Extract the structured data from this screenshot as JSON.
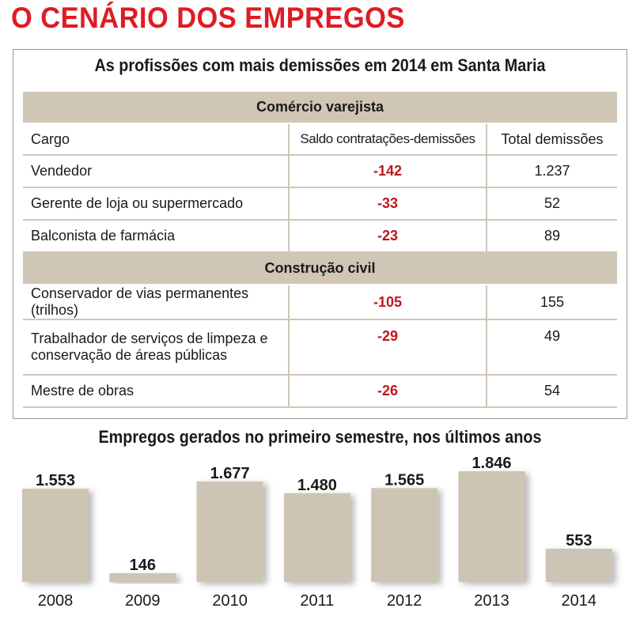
{
  "header": {
    "title": "O CENÁRIO DOS EMPREGOS",
    "subtitle": "As profissões com mais demissões em 2014 em Santa Maria"
  },
  "table": {
    "columns": [
      "Cargo",
      "Saldo contratações-demissões",
      "Total demissões"
    ],
    "sections": [
      {
        "name": "Comércio varejista",
        "rows": [
          {
            "cargo": "Vendedor",
            "saldo": "-142",
            "total": "1.237"
          },
          {
            "cargo": "Gerente de loja ou supermercado",
            "saldo": "-33",
            "total": "52"
          },
          {
            "cargo": "Balconista de farmácia",
            "saldo": "-23",
            "total": "89"
          }
        ]
      },
      {
        "name": "Construção civil",
        "rows": [
          {
            "cargo": "Conservador de vias permanentes (trilhos)",
            "saldo": "-105",
            "total": "155"
          },
          {
            "cargo_line1": "Trabalhador de serviços de limpeza e",
            "cargo_line2": "conservação de áreas públicas",
            "saldo": "-29",
            "total": "49"
          },
          {
            "cargo": "Mestre de obras",
            "saldo": "-26",
            "total": "54"
          }
        ]
      }
    ]
  },
  "colors": {
    "title_red": "#e01b24",
    "negative_red": "#c0161e",
    "tan": "#cfc6b6",
    "bar": "#cdc4b4"
  },
  "chart_data": {
    "type": "bar",
    "title": "Empregos gerados no primeiro semestre, nos últimos anos",
    "categories": [
      "2008",
      "2009",
      "2010",
      "2011",
      "2012",
      "2013",
      "2014"
    ],
    "values": [
      1553,
      146,
      1677,
      1480,
      1565,
      1846,
      553
    ],
    "value_labels": [
      "1.553",
      "146",
      "1.677",
      "1.480",
      "1.565",
      "1.846",
      "553"
    ],
    "xlabel": "",
    "ylabel": "",
    "ylim": [
      0,
      1846
    ]
  }
}
